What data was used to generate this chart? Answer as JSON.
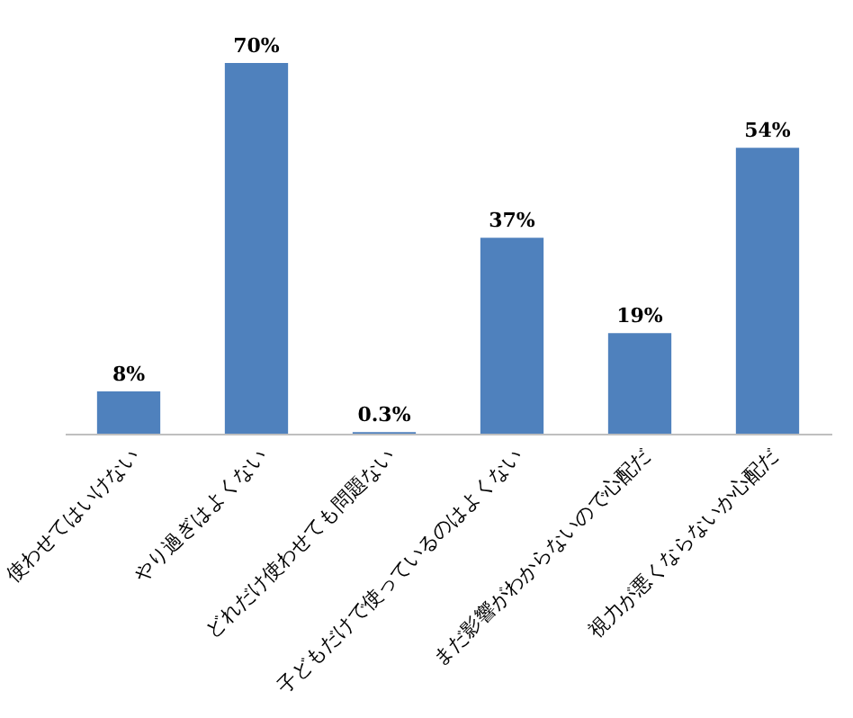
{
  "chart_data": {
    "type": "bar",
    "categories": [
      "使わせてはいけない",
      "やり過ぎはよくない",
      "どれだけ使わせても問題ない",
      "子どもだけで使っているのはよくない",
      "まだ影響がわからないので心配だ",
      "視力が悪くならないか心配だ"
    ],
    "values": [
      8,
      70,
      0.3,
      37,
      19,
      54
    ],
    "value_labels": [
      "8%",
      "70%",
      "0.3%",
      "37%",
      "19%",
      "54%"
    ],
    "color": "#4f81bd"
  }
}
